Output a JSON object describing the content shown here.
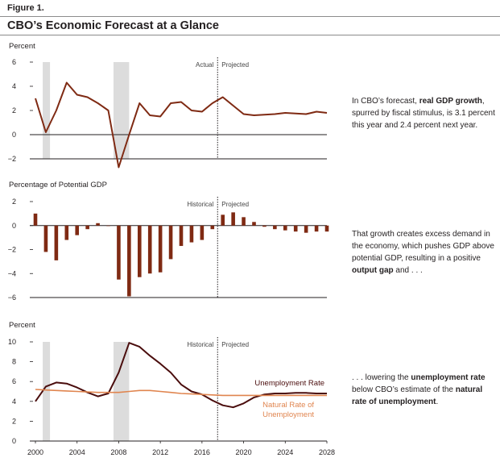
{
  "figure": {
    "label": "Figure 1.",
    "title": "CBO’s Economic Forecast at a Glance"
  },
  "notes": {
    "gdp": {
      "pre": "In CBO’s forecast, ",
      "bold": "real GDP growth",
      "post": ", spurred by fiscal stimulus, is 3.1 percent this year and 2.4 percent next year."
    },
    "gap": {
      "pre": "That growth creates excess demand in the economy, which pushes GDP above potential GDP, resulting in a positive ",
      "bold": "output gap",
      "post": " and . . ."
    },
    "unemp": {
      "pre": ". . . lowering the ",
      "bold": "unemployment rate",
      "mid": " below CBO’s estimate of the ",
      "bold2": "natural rate of unemployment",
      "post": "."
    }
  },
  "colors": {
    "gdp": "#7f2a13",
    "bar": "#7f2a13",
    "unemployment": "#4a0d0d",
    "natural": "#e0854f",
    "recession": "#dcdcdc",
    "axis": "#231f20"
  },
  "chart_data": [
    {
      "id": "gdp",
      "type": "line",
      "ylabel": "Percent",
      "ylim": [
        -2,
        6
      ],
      "yticks": [
        -2,
        0,
        2,
        4,
        6
      ],
      "xlim": [
        2000,
        2028
      ],
      "divider_year": 2017.5,
      "divider_labels": [
        "Actual",
        "Projected"
      ],
      "recessions": [
        [
          2000.7,
          2001.4
        ],
        [
          2007.5,
          2009.0
        ]
      ],
      "series": [
        {
          "name": "Real GDP growth",
          "x": [
            2000,
            2001,
            2002,
            2003,
            2004,
            2005,
            2006,
            2007,
            2008,
            2009,
            2010,
            2011,
            2012,
            2013,
            2014,
            2015,
            2016,
            2017,
            2018,
            2019,
            2020,
            2021,
            2022,
            2023,
            2024,
            2025,
            2026,
            2027,
            2028
          ],
          "values": [
            3.0,
            0.2,
            2.0,
            4.3,
            3.3,
            3.1,
            2.6,
            2.0,
            -2.7,
            0.0,
            2.6,
            1.6,
            1.5,
            2.6,
            2.7,
            2.0,
            1.9,
            2.6,
            3.1,
            2.4,
            1.7,
            1.6,
            1.65,
            1.7,
            1.8,
            1.75,
            1.7,
            1.9,
            1.8
          ]
        }
      ]
    },
    {
      "id": "output_gap",
      "type": "bar",
      "ylabel": "Percentage of Potential GDP",
      "ylim": [
        -6,
        2
      ],
      "yticks": [
        -6,
        -4,
        -2,
        0,
        2
      ],
      "xlim": [
        2000,
        2028
      ],
      "divider_year": 2017.5,
      "divider_labels": [
        "Historical",
        "Projected"
      ],
      "series": [
        {
          "name": "Output gap",
          "x": [
            2000,
            2001,
            2002,
            2003,
            2004,
            2005,
            2006,
            2007,
            2008,
            2009,
            2010,
            2011,
            2012,
            2013,
            2014,
            2015,
            2016,
            2017,
            2018,
            2019,
            2020,
            2021,
            2022,
            2023,
            2024,
            2025,
            2026,
            2027,
            2028
          ],
          "values": [
            1.0,
            -2.2,
            -2.9,
            -1.2,
            -0.8,
            -0.3,
            0.2,
            0.0,
            -4.5,
            -5.9,
            -4.3,
            -4.0,
            -3.9,
            -2.8,
            -1.7,
            -1.4,
            -1.2,
            -0.3,
            0.9,
            1.1,
            0.7,
            0.3,
            -0.1,
            -0.3,
            -0.4,
            -0.5,
            -0.6,
            -0.5,
            -0.5
          ]
        }
      ]
    },
    {
      "id": "unemployment",
      "type": "line",
      "ylabel": "Percent",
      "ylim": [
        0,
        10
      ],
      "yticks": [
        0,
        2,
        4,
        6,
        8,
        10
      ],
      "xlim": [
        2000,
        2028
      ],
      "xticks": [
        2000,
        2004,
        2008,
        2012,
        2016,
        2020,
        2024,
        2028
      ],
      "divider_year": 2017.5,
      "divider_labels": [
        "Historical",
        "Projected"
      ],
      "recessions": [
        [
          2000.7,
          2001.4
        ],
        [
          2007.5,
          2009.0
        ]
      ],
      "series": [
        {
          "name": "Unemployment Rate",
          "label": "Unemployment Rate",
          "x": [
            2000,
            2001,
            2002,
            2003,
            2004,
            2005,
            2006,
            2007,
            2008,
            2009,
            2010,
            2011,
            2012,
            2013,
            2014,
            2015,
            2016,
            2017,
            2018,
            2019,
            2020,
            2021,
            2022,
            2023,
            2024,
            2025,
            2026,
            2027,
            2028
          ],
          "values": [
            4.0,
            5.5,
            5.9,
            5.8,
            5.4,
            4.9,
            4.5,
            4.8,
            6.9,
            9.9,
            9.5,
            8.6,
            7.8,
            6.9,
            5.7,
            5.0,
            4.7,
            4.1,
            3.6,
            3.4,
            3.8,
            4.4,
            4.7,
            4.8,
            4.8,
            4.85,
            4.85,
            4.8,
            4.8
          ]
        },
        {
          "name": "Natural Rate of Unemployment",
          "label_lines": [
            "Natural Rate of",
            "Unemployment"
          ],
          "x": [
            2000,
            2001,
            2002,
            2003,
            2004,
            2005,
            2006,
            2007,
            2008,
            2009,
            2010,
            2011,
            2012,
            2013,
            2014,
            2015,
            2016,
            2017,
            2018,
            2019,
            2020,
            2021,
            2022,
            2023,
            2024,
            2025,
            2026,
            2027,
            2028
          ],
          "values": [
            5.2,
            5.15,
            5.1,
            5.05,
            5.0,
            4.95,
            4.9,
            4.9,
            4.9,
            5.0,
            5.1,
            5.1,
            5.0,
            4.9,
            4.8,
            4.75,
            4.7,
            4.65,
            4.6,
            4.6,
            4.6,
            4.6,
            4.6,
            4.6,
            4.6,
            4.6,
            4.6,
            4.6,
            4.6
          ]
        }
      ]
    }
  ]
}
